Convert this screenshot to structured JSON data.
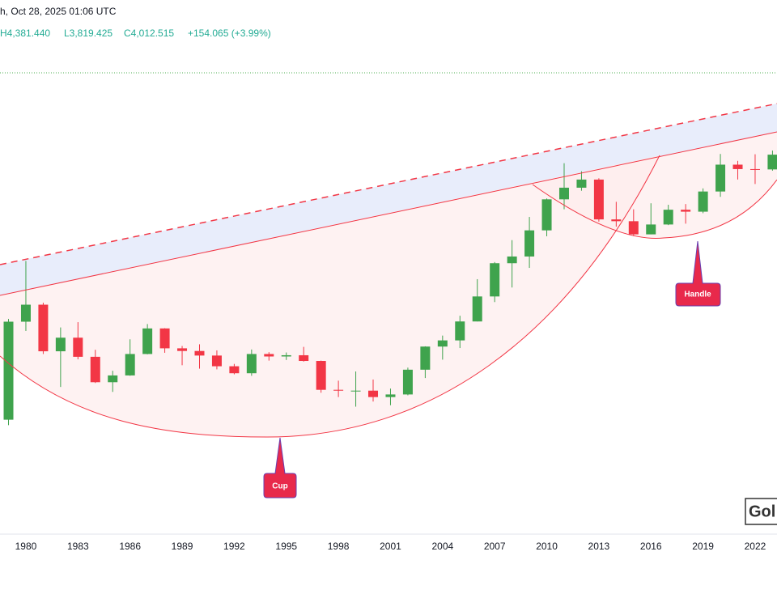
{
  "header": {
    "time": "h, Oct 28, 2025 01:06 UTC",
    "high": "H4,381.440",
    "low": "L3,819.425",
    "close": "C4,012.515",
    "change": "+154.065 (+3.99%)"
  },
  "chart_data": {
    "type": "candlestick",
    "x": [
      1979,
      1980,
      1981,
      1982,
      1983,
      1984,
      1985,
      1986,
      1987,
      1988,
      1989,
      1990,
      1991,
      1992,
      1993,
      1994,
      1995,
      1996,
      1997,
      1998,
      1999,
      2000,
      2001,
      2002,
      2003,
      2004,
      2005,
      2006,
      2007,
      2008,
      2009,
      2010,
      2011,
      2012,
      2013,
      2014,
      2015,
      2016,
      2017,
      2018,
      2019,
      2020,
      2021,
      2022,
      2023
    ],
    "open": [
      226,
      512,
      590,
      400,
      448,
      382,
      309,
      327,
      391,
      484,
      410,
      401,
      386,
      353,
      333,
      391,
      383,
      387,
      369,
      290,
      288,
      288,
      273,
      279,
      343,
      416,
      438,
      513,
      632,
      834,
      882,
      1097,
      1421,
      1566,
      1676,
      1202,
      1184,
      1061,
      1152,
      1303,
      1282,
      1517,
      1898,
      1829,
      1824
    ],
    "high": [
      524,
      850,
      600,
      488,
      510,
      405,
      340,
      442,
      502,
      485,
      418,
      424,
      403,
      360,
      406,
      397,
      396,
      415,
      370,
      313,
      338,
      316,
      293,
      349,
      417,
      456,
      538,
      730,
      842,
      1011,
      1227,
      1431,
      1921,
      1796,
      1694,
      1392,
      1308,
      1375,
      1358,
      1366,
      1557,
      2075,
      1959,
      2070,
      2135
    ],
    "low": [
      216,
      474,
      391,
      297,
      374,
      307,
      285,
      326,
      390,
      395,
      356,
      346,
      344,
      330,
      326,
      370,
      372,
      367,
      283,
      273,
      252,
      263,
      255,
      277,
      320,
      373,
      411,
      513,
      603,
      681,
      802,
      1044,
      1308,
      1527,
      1180,
      1132,
      1046,
      1061,
      1146,
      1160,
      1266,
      1451,
      1677,
      1615,
      1805
    ],
    "close": [
      512,
      590,
      400,
      448,
      382,
      309,
      327,
      391,
      484,
      410,
      401,
      386,
      353,
      333,
      391,
      383,
      387,
      369,
      290,
      288,
      288,
      273,
      279,
      343,
      416,
      438,
      513,
      632,
      834,
      882,
      1097,
      1421,
      1566,
      1676,
      1202,
      1184,
      1061,
      1152,
      1303,
      1282,
      1517,
      1898,
      1829,
      1824,
      2063
    ],
    "up_color": "#3fa34d",
    "down_color": "#f23645",
    "log_scale": true,
    "xlim": [
      1978.51,
      2023.26
    ],
    "ylim": [
      87,
      5000
    ],
    "xticks": [
      1980,
      1983,
      1986,
      1989,
      1992,
      1995,
      1998,
      2001,
      2004,
      2007,
      2010,
      2013,
      2016,
      2019,
      2022
    ]
  },
  "annotations": {
    "cup": "Cup",
    "handle": "Handle",
    "watermark": "Gol"
  }
}
